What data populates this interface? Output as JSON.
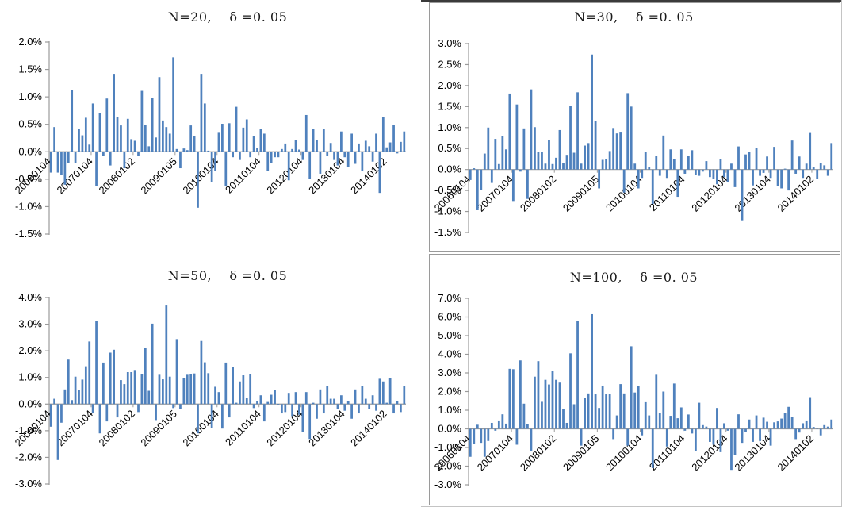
{
  "chart_data": [
    {
      "type": "bar",
      "title": "N=20,    δ =0. 05",
      "xlabel": "",
      "ylabel": "",
      "ylim": [
        -1.5,
        2.0
      ],
      "ystep": 0.5,
      "ytick_labels": [
        "2.0%",
        "1.5%",
        "1.0%",
        "0.5%",
        "0.0%",
        "-0.5%",
        "-1.0%",
        "-1.5%"
      ],
      "x_tick_labels": [
        "20060104",
        "20070104",
        "20080102",
        "20090105",
        "20100104",
        "20110104",
        "20120104",
        "20130104",
        "20140102"
      ],
      "x_tick_indices": [
        0,
        12,
        24,
        36,
        48,
        60,
        72,
        84,
        96
      ],
      "legend": "none",
      "grid": "off",
      "bar_color": "#4F81BD",
      "values": [
        -0.38,
        0.45,
        -0.38,
        -0.42,
        -0.6,
        -0.2,
        1.13,
        -0.2,
        0.41,
        0.3,
        0.62,
        0.13,
        0.88,
        -0.63,
        0.71,
        -0.07,
        0.97,
        -0.25,
        1.42,
        0.64,
        0.48,
        -0.3,
        0.6,
        0.23,
        0.2,
        -0.08,
        1.11,
        0.49,
        0.1,
        0.98,
        0.26,
        1.36,
        0.57,
        0.45,
        0.33,
        1.72,
        0.05,
        -0.3,
        0.06,
        0.03,
        0.48,
        0.29,
        -1.02,
        1.42,
        0.88,
        0.02,
        -0.55,
        -0.35,
        0.36,
        0.51,
        -0.62,
        0.52,
        -0.1,
        0.82,
        -0.15,
        0.44,
        0.59,
        -0.1,
        0.28,
        0.07,
        0.42,
        0.33,
        -0.35,
        -0.2,
        -0.1,
        -0.1,
        0.05,
        0.15,
        -0.52,
        0.05,
        0.21,
        0.04,
        -0.15,
        0.67,
        -0.5,
        0.41,
        0.21,
        -0.4,
        0.41,
        -0.07,
        0.16,
        -0.15,
        -0.25,
        0.37,
        -0.1,
        -0.28,
        0.33,
        -0.22,
        0.15,
        -0.35,
        0.2,
        0.1,
        -0.18,
        0.33,
        -0.75,
        0.63,
        0.08,
        0.17,
        0.49,
        -0.03,
        0.18,
        0.37
      ]
    },
    {
      "type": "bar",
      "title": "N=30,    δ =0. 05",
      "xlabel": "",
      "ylabel": "",
      "ylim": [
        -1.5,
        3.0
      ],
      "ystep": 0.5,
      "ytick_labels": [
        "3.0%",
        "2.5%",
        "2.0%",
        "1.5%",
        "1.0%",
        "0.5%",
        "0.0%",
        "-0.5%",
        "-1.0%",
        "-1.5%"
      ],
      "x_tick_labels": [
        "20060104",
        "20070104",
        "20080102",
        "20090105",
        "20100104",
        "20110104",
        "20120104",
        "20130104",
        "20140102"
      ],
      "x_tick_indices": [
        0,
        12,
        24,
        36,
        48,
        60,
        72,
        84,
        96
      ],
      "legend": "none",
      "grid": "off",
      "bar_color": "#4F81BD",
      "values": [
        -0.25,
        0.03,
        -0.97,
        -0.48,
        0.38,
        1.0,
        -0.32,
        0.73,
        0.13,
        0.8,
        0.48,
        1.81,
        -0.75,
        1.55,
        -0.05,
        0.98,
        -0.7,
        1.91,
        1.01,
        0.42,
        0.41,
        0.14,
        0.71,
        0.13,
        0.28,
        0.94,
        0.16,
        0.35,
        1.51,
        0.4,
        1.84,
        0.14,
        0.57,
        0.63,
        2.74,
        1.15,
        -0.45,
        0.23,
        0.25,
        0.44,
        0.99,
        0.86,
        0.9,
        -0.55,
        1.82,
        1.5,
        0.14,
        -0.45,
        -0.2,
        0.42,
        0.06,
        -0.82,
        0.33,
        -0.15,
        0.81,
        -0.2,
        0.48,
        0.25,
        -0.65,
        0.48,
        -0.1,
        0.33,
        0.46,
        -0.12,
        -0.15,
        -0.05,
        0.2,
        -0.18,
        -0.22,
        -0.35,
        0.25,
        -0.18,
        -0.3,
        0.14,
        -0.42,
        0.55,
        -1.21,
        0.36,
        0.42,
        -0.38,
        0.52,
        -0.15,
        -0.08,
        0.31,
        -0.2,
        0.54,
        -0.4,
        -0.45,
        0.02,
        -0.5,
        0.69,
        -0.1,
        0.31,
        -0.2,
        0.14,
        0.89,
        0.05,
        -0.22,
        0.15,
        0.1,
        -0.15,
        0.63
      ]
    },
    {
      "type": "bar",
      "title": "N=50,    δ =0. 05",
      "xlabel": "",
      "ylabel": "",
      "ylim": [
        -3.0,
        4.0
      ],
      "ystep": 1.0,
      "ytick_labels": [
        "4.0%",
        "3.0%",
        "2.0%",
        "1.0%",
        "0.0%",
        "-1.0%",
        "-2.0%",
        "-3.0%"
      ],
      "x_tick_labels": [
        "20060104",
        "20070104",
        "20080102",
        "20090105",
        "20100104",
        "20110104",
        "20120104",
        "20130104",
        "20140102"
      ],
      "x_tick_indices": [
        0,
        12,
        24,
        36,
        48,
        60,
        72,
        84,
        96
      ],
      "legend": "none",
      "grid": "off",
      "bar_color": "#4F81BD",
      "values": [
        -0.85,
        0.2,
        -2.1,
        -0.7,
        0.55,
        1.67,
        0.15,
        1.03,
        0.52,
        0.92,
        1.42,
        2.35,
        -0.35,
        3.13,
        -1.1,
        1.56,
        -0.65,
        1.93,
        2.04,
        -0.5,
        0.9,
        0.75,
        1.2,
        1.2,
        1.28,
        -0.3,
        1.12,
        2.12,
        0.5,
        3.02,
        -0.6,
        1.1,
        0.93,
        3.7,
        1.03,
        -0.15,
        2.44,
        -0.2,
        0.97,
        1.1,
        1.12,
        1.15,
        -1.1,
        2.37,
        1.57,
        1.16,
        -0.9,
        0.65,
        0.45,
        -0.92,
        1.56,
        -0.5,
        1.38,
        0.05,
        0.85,
        1.08,
        0.22,
        1.14,
        -0.15,
        0.1,
        0.33,
        -0.65,
        0.08,
        0.35,
        0.52,
        -0.05,
        -0.35,
        -0.3,
        0.42,
        -0.45,
        0.45,
        -0.4,
        -1.05,
        0.45,
        -1.31,
        0.05,
        -0.55,
        0.55,
        -0.35,
        0.68,
        0.2,
        0.2,
        -0.2,
        0.33,
        -0.25,
        0.12,
        -0.55,
        0.55,
        -0.35,
        0.68,
        0.2,
        -0.2,
        0.33,
        -0.25,
        0.95,
        0.85,
        0.05,
        0.97,
        -0.35,
        0.1,
        -0.3,
        0.68
      ]
    },
    {
      "type": "bar",
      "title": "N=100,    δ =0. 05",
      "xlabel": "",
      "ylabel": "",
      "ylim": [
        -3.0,
        7.0
      ],
      "ystep": 1.0,
      "ytick_labels": [
        "7.0%",
        "6.0%",
        "5.0%",
        "4.0%",
        "3.0%",
        "2.0%",
        "1.0%",
        "0.0%",
        "-1.0%",
        "-2.0%",
        "-3.0%"
      ],
      "x_tick_labels": [
        "20060104",
        "20070104",
        "20080102",
        "20090105",
        "20100104",
        "20110104",
        "20120104",
        "20130104",
        "20140102"
      ],
      "x_tick_indices": [
        0,
        12,
        24,
        36,
        48,
        60,
        72,
        84,
        96
      ],
      "legend": "none",
      "grid": "off",
      "bar_color": "#4F81BD",
      "values": [
        -1.5,
        -0.8,
        0.22,
        -0.75,
        -1.5,
        -0.65,
        0.32,
        -0.1,
        0.45,
        0.78,
        0.28,
        3.22,
        3.2,
        -0.85,
        3.67,
        1.35,
        0.25,
        -1.2,
        2.8,
        3.63,
        1.45,
        2.63,
        2.38,
        3.1,
        2.63,
        2.48,
        1.08,
        0.32,
        4.05,
        1.32,
        5.77,
        -0.9,
        1.68,
        1.9,
        6.15,
        1.85,
        1.12,
        2.32,
        1.85,
        1.88,
        -0.55,
        0.72,
        2.4,
        1.9,
        -0.9,
        4.43,
        1.95,
        2.3,
        -0.35,
        1.43,
        0.72,
        -2.1,
        2.9,
        0.87,
        2.0,
        -0.95,
        0.7,
        2.43,
        0.57,
        1.15,
        -0.1,
        0.77,
        -0.25,
        -1.2,
        1.4,
        0.2,
        0.12,
        -0.7,
        -0.85,
        1.12,
        -1.25,
        0.3,
        -0.1,
        -2.2,
        -1.4,
        0.78,
        -0.75,
        -0.15,
        0.5,
        -0.7,
        0.72,
        -0.65,
        0.6,
        0.38,
        -0.9,
        0.35,
        0.4,
        0.55,
        0.85,
        1.18,
        0.65,
        -0.55,
        -0.2,
        0.3,
        0.45,
        1.7,
        0.1,
        0.05,
        -0.35,
        0.2,
        0.12,
        0.5
      ]
    }
  ],
  "colors": {
    "bar": "#4F81BD",
    "axis_line": "#9b9b9b",
    "tick_text": "#000000",
    "box_border": "#9a9a9a",
    "top_edge": "#3a3a3a"
  }
}
